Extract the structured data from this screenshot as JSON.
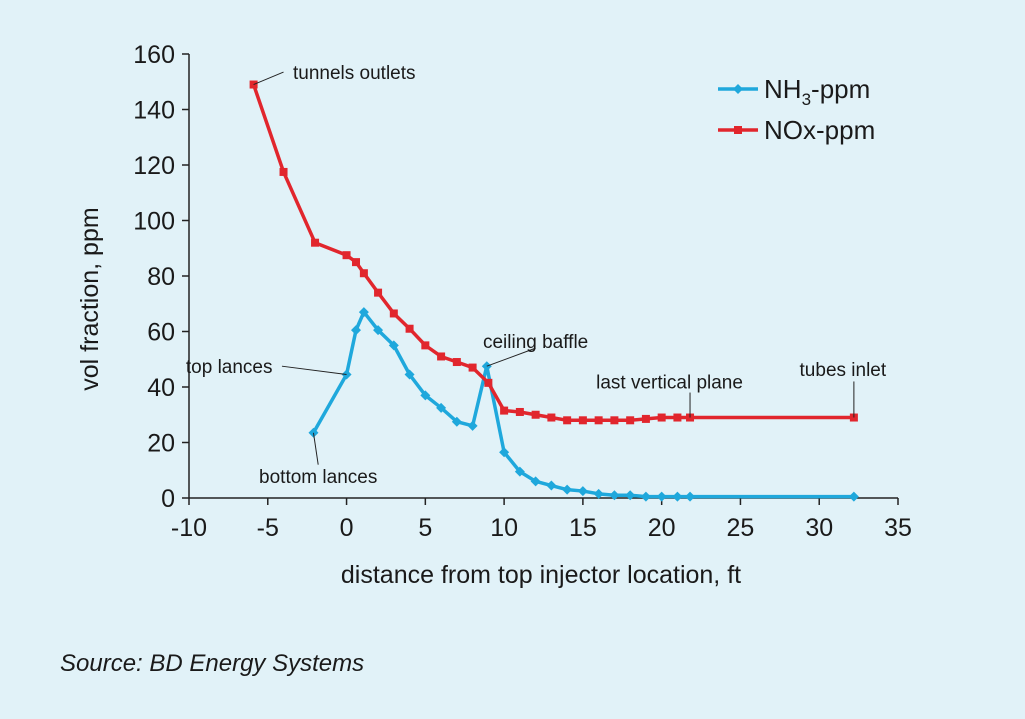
{
  "source": "Source: BD Energy Systems",
  "chart_data": {
    "type": "line",
    "xlabel": "distance from top injector location, ft",
    "ylabel": "vol fraction, ppm",
    "xlim": [
      -10,
      35
    ],
    "ylim": [
      0,
      160
    ],
    "xticks": [
      -10,
      -5,
      0,
      5,
      10,
      15,
      20,
      25,
      30,
      35
    ],
    "yticks": [
      0,
      20,
      40,
      60,
      80,
      100,
      120,
      140,
      160
    ],
    "grid": false,
    "legend_position": "top-right",
    "series": [
      {
        "name": "NH3-ppm",
        "legend_main": "NH",
        "legend_sub": "3",
        "legend_tail": "-ppm",
        "color": "#1fa8dc",
        "marker": "diamond",
        "points": [
          [
            -2.1,
            23.5
          ],
          [
            0,
            44.5
          ],
          [
            0.6,
            60.5
          ],
          [
            1.1,
            67
          ],
          [
            2,
            60.5
          ],
          [
            3,
            55
          ],
          [
            4,
            44.5
          ],
          [
            5,
            37
          ],
          [
            6,
            32.5
          ],
          [
            7,
            27.5
          ],
          [
            8,
            26
          ],
          [
            8.9,
            47.5
          ],
          [
            10,
            16.5
          ],
          [
            11,
            9.5
          ],
          [
            12,
            6
          ],
          [
            13,
            4.5
          ],
          [
            14,
            3
          ],
          [
            15,
            2.5
          ],
          [
            16,
            1.5
          ],
          [
            17,
            1
          ],
          [
            18,
            1
          ],
          [
            19,
            0.5
          ],
          [
            20,
            0.5
          ],
          [
            21,
            0.5
          ],
          [
            21.8,
            0.5
          ],
          [
            32.2,
            0.5
          ]
        ]
      },
      {
        "name": "NOx-ppm",
        "legend_main": "NOx-ppm",
        "color": "#e1262d",
        "marker": "square",
        "points": [
          [
            -5.9,
            149
          ],
          [
            -4,
            117.5
          ],
          [
            -2,
            92
          ],
          [
            0,
            87.5
          ],
          [
            0.6,
            85
          ],
          [
            1.1,
            81
          ],
          [
            2,
            74
          ],
          [
            3,
            66.5
          ],
          [
            4,
            61
          ],
          [
            5,
            55
          ],
          [
            6,
            51
          ],
          [
            7,
            49
          ],
          [
            8,
            47
          ],
          [
            9,
            41.5
          ],
          [
            10,
            31.5
          ],
          [
            11,
            31
          ],
          [
            12,
            30
          ],
          [
            13,
            29
          ],
          [
            14,
            28
          ],
          [
            15,
            28
          ],
          [
            16,
            28
          ],
          [
            17,
            28
          ],
          [
            18,
            28
          ],
          [
            19,
            28.5
          ],
          [
            20,
            29
          ],
          [
            21,
            29
          ],
          [
            21.8,
            29
          ],
          [
            32.2,
            29
          ]
        ]
      }
    ],
    "annotations": [
      {
        "text": "tunnels outlets",
        "point": [
          -5.9,
          149
        ],
        "label_at": [
          -3.4,
          153.5
        ],
        "anchor": "start",
        "elbow": [
          -4,
          153.5
        ]
      },
      {
        "text": "top lances",
        "point": [
          0,
          44.5
        ],
        "label_at": [
          -4.7,
          47.5
        ],
        "anchor": "end",
        "elbow": [
          -4.1,
          47.5
        ]
      },
      {
        "text": "bottom lances",
        "point": [
          -2.1,
          23.5
        ],
        "label_at": [
          -1.8,
          8
        ],
        "anchor": "middle",
        "elbow": [
          -1.8,
          12
        ]
      },
      {
        "text": "ceiling baffle",
        "point": [
          8.9,
          47.5
        ],
        "label_at": [
          12,
          56.5
        ],
        "anchor": "middle",
        "elbow": [
          12,
          54
        ]
      },
      {
        "text": "last vertical plane",
        "point": [
          21.8,
          29
        ],
        "label_at": [
          20.5,
          42
        ],
        "anchor": "middle",
        "elbow": [
          21.8,
          38
        ]
      },
      {
        "text": "tubes inlet",
        "point": [
          32.2,
          29
        ],
        "label_at": [
          31.5,
          46.5
        ],
        "anchor": "middle",
        "elbow": [
          32.2,
          42
        ]
      }
    ]
  }
}
